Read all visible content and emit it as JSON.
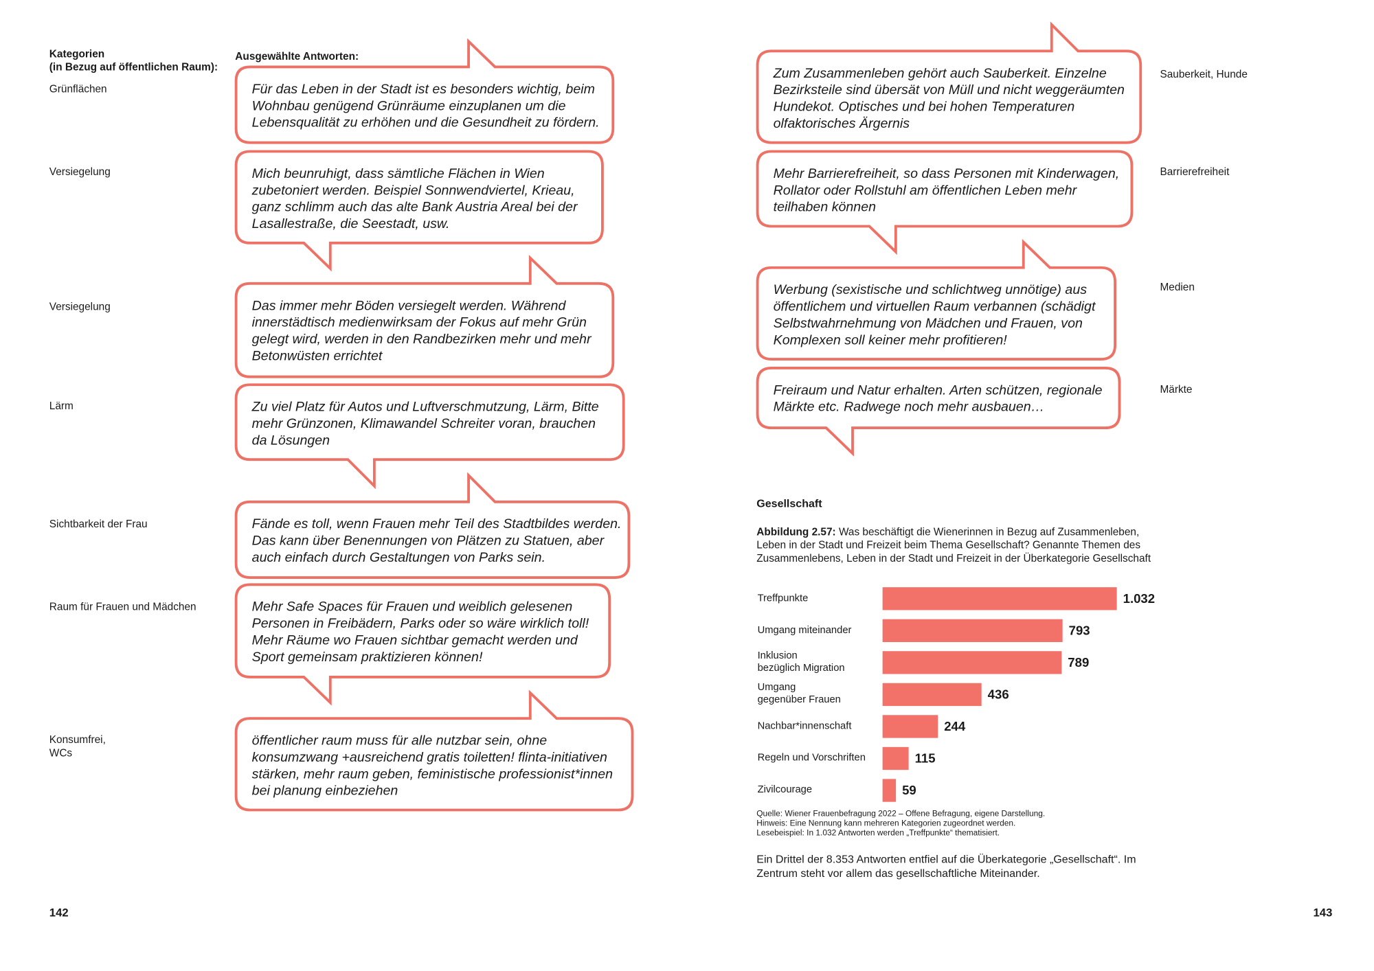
{
  "left": {
    "header_categories": "Kategorien\n(in Bezug auf öffentlichen Raum):",
    "header_answers": "Ausgewählte Antworten:",
    "items": [
      {
        "category": "Grünflächen",
        "quote": [
          "Für das Leben in der Stadt ist es besonders wichtig, beim",
          "Wohnbau genügend Grünräume einzuplanen um die",
          "Lebensqualität zu erhöhen und die Gesundheit zu fördern."
        ]
      },
      {
        "category": "Versiegelung",
        "quote": [
          "Mich beunruhigt, dass sämtliche Flächen in Wien",
          "zubetoniert werden. Beispiel Sonnwendviertel, Krieau,",
          "ganz schlimm auch das alte Bank Austria Areal bei der",
          "Lasallestraße, die Seestadt, usw."
        ]
      },
      {
        "category": "Versiegelung",
        "quote": [
          "Das immer mehr Böden versiegelt werden. Während",
          "innerstädtisch medienwirksam der Fokus auf mehr Grün",
          "gelegt wird, werden in den Randbezirken mehr und mehr",
          "Betonwüsten errichtet"
        ]
      },
      {
        "category": "Lärm",
        "quote": [
          "Zu viel Platz für Autos und Luftverschmutzung, Lärm, Bitte",
          "mehr Grünzonen, Klimawandel Schreiter voran, brauchen",
          "da Lösungen"
        ]
      },
      {
        "category": "Sichtbarkeit der Frau",
        "quote": [
          "Fände es toll, wenn Frauen mehr Teil des Stadtbildes werden.",
          "Das kann über Benennungen von Plätzen zu Statuen, aber",
          "auch einfach durch Gestaltungen von Parks sein."
        ]
      },
      {
        "category": "Raum für Frauen und Mädchen",
        "quote": [
          "Mehr Safe Spaces für Frauen und weiblich gelesenen",
          "Personen in Freibädern, Parks oder so wäre wirklich toll!",
          "Mehr Räume wo Frauen sichtbar gemacht werden und",
          "Sport gemeinsam praktizieren können!"
        ]
      },
      {
        "category": "Konsumfrei,\nWCs",
        "quote": [
          "öffentlicher raum muss für alle nutzbar sein, ohne",
          "konsumzwang +ausreichend gratis toiletten! flinta-initiativen",
          "stärken, mehr raum geben, feministische professionist*innen",
          "bei planung einbeziehen"
        ]
      }
    ]
  },
  "right": {
    "items": [
      {
        "category": "Sauberkeit, Hunde",
        "quote": [
          "Zum Zusammenleben gehört auch Sauberkeit. Einzelne",
          "Bezirksteile sind übersät von Müll und nicht weggeräumten",
          "Hundekot. Optisches und bei hohen Temperaturen",
          "olfaktorisches Ärgernis"
        ]
      },
      {
        "category": "Barrierefreiheit",
        "quote": [
          "Mehr Barrierefreiheit, so dass Personen mit Kinderwagen,",
          "Rollator oder Rollstuhl am öffentlichen Leben mehr",
          "teilhaben können"
        ]
      },
      {
        "category": "Medien",
        "quote": [
          "Werbung (sexistische und schlichtweg unnötige) aus",
          "öffentlichem und virtuellen Raum verbannen (schädigt",
          "Selbstwahrnehmung von Mädchen und Frauen, von",
          "Komplexen soll keiner mehr profitieren!"
        ]
      },
      {
        "category": "Märkte",
        "quote": [
          "Freiraum und Natur erhalten. Arten schützen, regionale",
          "Märkte etc. Radwege noch mehr ausbauen…"
        ]
      }
    ]
  },
  "section_title": "Gesellschaft",
  "figure": {
    "label": "Abbildung 2.57:",
    "caption": "Was beschäftigt die Wienerinnen in Bezug auf Zusammenleben, Leben in der Stadt und Freizeit beim Thema Gesellschaft? Genannte Themen des Zusammenlebens, Leben in der Stadt und Freizeit in der Überkategorie Gesellschaft",
    "notes": [
      "Quelle: Wiener Frauenbefragung 2022 – Offene Befragung, eigene Darstellung.",
      "Hinweis: Eine Nennung kann mehreren Kategorien zugeordnet werden.",
      "Lesebeispiel: In 1.032 Antworten werden „Treffpunkte“ thematisiert."
    ]
  },
  "chart_data": {
    "type": "bar",
    "orientation": "horizontal",
    "categories": [
      "Treffpunkte",
      "Umgang miteinander",
      "Inklusion\nbezüglich Migration",
      "Umgang\ngegenüber Frauen",
      "Nachbar*innenschaft",
      "Regeln und Vorschriften",
      "Zivilcourage"
    ],
    "values": [
      1032,
      793,
      789,
      436,
      244,
      115,
      59
    ],
    "value_labels": [
      "1.032",
      "793",
      "789",
      "436",
      "244",
      "115",
      "59"
    ],
    "color": "#f2726a"
  },
  "summary": "Ein Drittel der 8.353 Antworten entfiel auf die Überkategorie „Gesellschaft“. Im Zentrum steht vor allem das gesellschaftliche Miteinander.",
  "page_numbers": [
    "142",
    "143"
  ]
}
